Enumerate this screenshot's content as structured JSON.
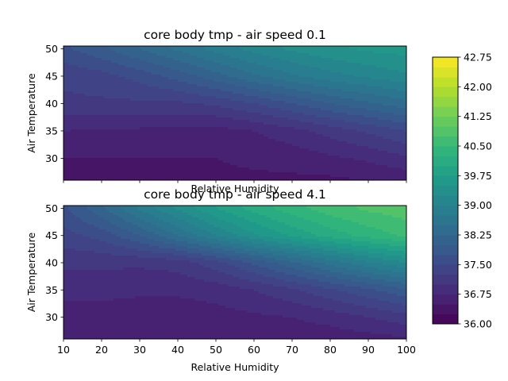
{
  "chart_data": {
    "type": "heatmap",
    "colorbar": {
      "min": 36.0,
      "max": 42.75,
      "step": 0.25,
      "tick_labels": [
        "36.00",
        "36.75",
        "37.50",
        "38.25",
        "39.00",
        "39.75",
        "40.50",
        "41.25",
        "42.00",
        "42.75"
      ],
      "colormap": "viridis",
      "colors": [
        "#440154",
        "#482878",
        "#3e4989",
        "#31688e",
        "#26828e",
        "#1f9e89",
        "#35b779",
        "#6ece58",
        "#b5de2b",
        "#fde725"
      ]
    },
    "panels": [
      {
        "title": "core body tmp - air speed 0.1",
        "xlabel": "Relative Humidity",
        "ylabel": "Air Temperature",
        "x": [
          10,
          20,
          30,
          40,
          50,
          60,
          70,
          80,
          90,
          100
        ],
        "y": [
          26,
          30,
          35,
          40,
          45,
          50
        ],
        "z": [
          [
            36.45,
            36.45,
            36.45,
            36.45,
            36.45,
            36.45,
            36.45,
            36.45,
            36.5,
            36.55
          ],
          [
            36.5,
            36.5,
            36.5,
            36.5,
            36.5,
            36.55,
            36.6,
            36.7,
            36.8,
            36.95
          ],
          [
            36.75,
            36.72,
            36.7,
            36.68,
            36.65,
            36.75,
            36.9,
            37.1,
            37.3,
            37.5
          ],
          [
            37.2,
            37.2,
            37.2,
            37.2,
            37.3,
            37.5,
            37.75,
            38.0,
            38.2,
            38.4
          ],
          [
            37.3,
            37.4,
            37.6,
            37.85,
            38.15,
            38.45,
            38.7,
            38.9,
            39.05,
            39.2
          ],
          [
            37.7,
            37.95,
            38.25,
            38.55,
            38.85,
            39.1,
            39.3,
            39.45,
            39.55,
            39.6
          ]
        ],
        "xticks": [
          10,
          20,
          30,
          40,
          50,
          60,
          70,
          80,
          90,
          100
        ],
        "xtick_labels_visible": false,
        "yticks": [
          30,
          35,
          40,
          45,
          50
        ],
        "xlim": [
          10,
          100
        ],
        "ylim": [
          26,
          50.5
        ]
      },
      {
        "title": "core body tmp - air speed 4.1",
        "xlabel": "Relative Humidity",
        "ylabel": "Air Temperature",
        "x": [
          10,
          20,
          30,
          40,
          50,
          60,
          70,
          80,
          90,
          100
        ],
        "y": [
          26,
          30,
          35,
          40,
          45,
          50
        ],
        "z": [
          [
            36.55,
            36.55,
            36.55,
            36.55,
            36.55,
            36.55,
            36.6,
            36.6,
            36.65,
            36.7
          ],
          [
            36.6,
            36.6,
            36.6,
            36.6,
            36.65,
            36.7,
            36.75,
            36.85,
            37.0,
            37.15
          ],
          [
            36.85,
            36.85,
            36.8,
            36.8,
            36.85,
            37.0,
            37.2,
            37.45,
            37.7,
            37.95
          ],
          [
            37.05,
            37.05,
            37.05,
            37.1,
            37.4,
            37.8,
            38.2,
            38.6,
            38.95,
            39.25
          ],
          [
            37.4,
            37.6,
            38.0,
            38.5,
            39.0,
            39.45,
            39.8,
            40.1,
            40.35,
            40.55
          ],
          [
            37.7,
            38.2,
            38.8,
            39.3,
            39.75,
            40.1,
            40.4,
            40.65,
            40.8,
            40.9
          ]
        ],
        "xticks": [
          10,
          20,
          30,
          40,
          50,
          60,
          70,
          80,
          90,
          100
        ],
        "xtick_labels_visible": true,
        "yticks": [
          30,
          35,
          40,
          45,
          50
        ],
        "xlim": [
          10,
          100
        ],
        "ylim": [
          26,
          50.5
        ]
      }
    ]
  }
}
